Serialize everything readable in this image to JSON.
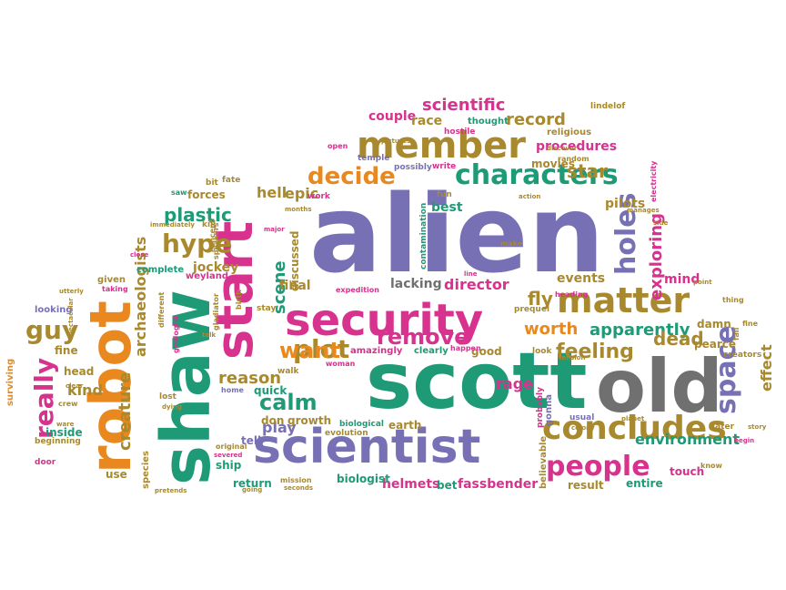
{
  "palette": {
    "purple": "#7770b5",
    "magenta": "#d6328e",
    "green": "#1f9a76",
    "orange": "#e9881e",
    "gold": "#a8892e",
    "gray": "#707070"
  },
  "words": [
    {
      "text": "alien",
      "color": "purple"
    },
    {
      "text": "scott",
      "color": "green"
    },
    {
      "text": "old",
      "color": "gray"
    },
    {
      "text": "shaw",
      "color": "green"
    },
    {
      "text": "scientist",
      "color": "purple"
    },
    {
      "text": "robot",
      "color": "orange"
    },
    {
      "text": "start",
      "color": "magenta"
    },
    {
      "text": "security",
      "color": "magenta"
    },
    {
      "text": "member",
      "color": "gold"
    },
    {
      "text": "matter",
      "color": "gold"
    },
    {
      "text": "characters",
      "color": "green"
    },
    {
      "text": "concludes",
      "color": "gold"
    },
    {
      "text": "people",
      "color": "magenta"
    },
    {
      "text": "holes",
      "color": "purple"
    },
    {
      "text": "space",
      "color": "purple"
    },
    {
      "text": "decide",
      "color": "orange"
    },
    {
      "text": "hype",
      "color": "gold"
    },
    {
      "text": "plot",
      "color": "gold"
    },
    {
      "text": "want",
      "color": "orange"
    },
    {
      "text": "really",
      "color": "magenta"
    },
    {
      "text": "guy",
      "color": "gold"
    },
    {
      "text": "remove",
      "color": "magenta"
    },
    {
      "text": "calm",
      "color": "green"
    },
    {
      "text": "plastic",
      "color": "green"
    },
    {
      "text": "feeling",
      "color": "gold"
    },
    {
      "text": "apparently",
      "color": "green"
    },
    {
      "text": "exploring",
      "color": "magenta"
    },
    {
      "text": "scientific",
      "color": "magenta"
    },
    {
      "text": "record",
      "color": "gold"
    },
    {
      "text": "procedures",
      "color": "magenta"
    },
    {
      "text": "scene",
      "color": "green"
    },
    {
      "text": "reason",
      "color": "gold"
    },
    {
      "text": "play",
      "color": "purple"
    },
    {
      "text": "creature",
      "color": "gold"
    },
    {
      "text": "archaeologists",
      "color": "gold"
    },
    {
      "text": "effect",
      "color": "gold"
    },
    {
      "text": "star",
      "color": "gold"
    },
    {
      "text": "fly",
      "color": "gold"
    },
    {
      "text": "dead",
      "color": "gold"
    },
    {
      "text": "director",
      "color": "magenta"
    },
    {
      "text": "worth",
      "color": "orange"
    },
    {
      "text": "environment",
      "color": "green"
    },
    {
      "text": "epic",
      "color": "gold"
    },
    {
      "text": "hell",
      "color": "gold"
    },
    {
      "text": "forces",
      "color": "gold"
    },
    {
      "text": "jockey",
      "color": "gold"
    },
    {
      "text": "kind",
      "color": "gold"
    },
    {
      "text": "final",
      "color": "gold"
    },
    {
      "text": "rage",
      "color": "magenta"
    },
    {
      "text": "pilots",
      "color": "gold"
    },
    {
      "text": "events",
      "color": "gold"
    },
    {
      "text": "mind",
      "color": "magenta"
    },
    {
      "text": "couple",
      "color": "magenta"
    },
    {
      "text": "race",
      "color": "gold"
    },
    {
      "text": "movies",
      "color": "gold"
    },
    {
      "text": "discussed",
      "color": "gold"
    },
    {
      "text": "quick",
      "color": "green"
    },
    {
      "text": "helmets",
      "color": "magenta"
    },
    {
      "text": "fassbender",
      "color": "magenta"
    },
    {
      "text": "biologist",
      "color": "green"
    },
    {
      "text": "return",
      "color": "green"
    },
    {
      "text": "earth",
      "color": "gold"
    },
    {
      "text": "touch",
      "color": "magenta"
    },
    {
      "text": "entire",
      "color": "green"
    },
    {
      "text": "result",
      "color": "gold"
    },
    {
      "text": "bet",
      "color": "green"
    },
    {
      "text": "good",
      "color": "gold"
    },
    {
      "text": "pearce",
      "color": "gold"
    },
    {
      "text": "damn",
      "color": "gold"
    },
    {
      "text": "lacking",
      "color": "gray"
    },
    {
      "text": "best",
      "color": "green"
    },
    {
      "text": "inside",
      "color": "green"
    },
    {
      "text": "head",
      "color": "gold"
    },
    {
      "text": "fine",
      "color": "gold"
    },
    {
      "text": "tell",
      "color": "purple"
    },
    {
      "text": "ship",
      "color": "green"
    },
    {
      "text": "use",
      "color": "gold"
    },
    {
      "text": "growth",
      "color": "gold"
    },
    {
      "text": "don",
      "color": "gold"
    },
    {
      "text": "thought",
      "color": "green"
    },
    {
      "text": "religious",
      "color": "gold"
    },
    {
      "text": "lindelof",
      "color": "gold"
    },
    {
      "text": "hostile",
      "color": "magenta"
    },
    {
      "text": "random",
      "color": "gold"
    },
    {
      "text": "temple",
      "color": "purple"
    },
    {
      "text": "open",
      "color": "magenta"
    },
    {
      "text": "possibly",
      "color": "purple"
    },
    {
      "text": "write",
      "color": "magenta"
    },
    {
      "text": "fun",
      "color": "gold"
    },
    {
      "text": "action",
      "color": "gold"
    },
    {
      "text": "work",
      "color": "magenta"
    },
    {
      "text": "months",
      "color": "gold"
    },
    {
      "text": "contamination",
      "color": "green"
    },
    {
      "text": "fate",
      "color": "gold"
    },
    {
      "text": "bit",
      "color": "gold"
    },
    {
      "text": "saw",
      "color": "green"
    },
    {
      "text": "kill",
      "color": "gold"
    },
    {
      "text": "concept",
      "color": "gold"
    },
    {
      "text": "major",
      "color": "magenta"
    },
    {
      "text": "weyland",
      "color": "magenta"
    },
    {
      "text": "complete",
      "color": "green"
    },
    {
      "text": "given",
      "color": "gold"
    },
    {
      "text": "taking",
      "color": "magenta"
    },
    {
      "text": "utterly",
      "color": "gold"
    },
    {
      "text": "looking",
      "color": "purple"
    },
    {
      "text": "expedition",
      "color": "magenta"
    },
    {
      "text": "birth",
      "color": "gold"
    },
    {
      "text": "stay",
      "color": "gold"
    },
    {
      "text": "walk",
      "color": "gold"
    },
    {
      "text": "woman",
      "color": "magenta"
    },
    {
      "text": "amazingly",
      "color": "magenta"
    },
    {
      "text": "clearly",
      "color": "green"
    },
    {
      "text": "happen",
      "color": "magenta"
    },
    {
      "text": "evolution",
      "color": "gold"
    },
    {
      "text": "biological",
      "color": "green"
    },
    {
      "text": "prequel",
      "color": "gold"
    },
    {
      "text": "heading",
      "color": "magenta"
    },
    {
      "text": "look",
      "color": "gold"
    },
    {
      "text": "tension",
      "color": "gold"
    },
    {
      "text": "gonna",
      "color": "purple"
    },
    {
      "text": "probably",
      "color": "magenta"
    },
    {
      "text": "usual",
      "color": "purple"
    },
    {
      "text": "colony",
      "color": "gold"
    },
    {
      "text": "planet",
      "color": "gold"
    },
    {
      "text": "creators",
      "color": "gold"
    },
    {
      "text": "later",
      "color": "gold"
    },
    {
      "text": "know",
      "color": "gold"
    },
    {
      "text": "begin",
      "color": "magenta"
    },
    {
      "text": "story",
      "color": "gold"
    },
    {
      "text": "fail",
      "color": "gold"
    },
    {
      "text": "fine",
      "color": "gold"
    },
    {
      "text": "thing",
      "color": "gold"
    },
    {
      "text": "point",
      "color": "gold"
    },
    {
      "text": "electricity",
      "color": "magenta"
    },
    {
      "text": "side",
      "color": "gold"
    },
    {
      "text": "manages",
      "color": "gold"
    },
    {
      "text": "discover",
      "color": "gold"
    },
    {
      "text": "pictures",
      "color": "gold"
    },
    {
      "text": "make",
      "color": "gold"
    },
    {
      "text": "line",
      "color": "magenta"
    },
    {
      "text": "believable",
      "color": "gold"
    },
    {
      "text": "mission",
      "color": "gold"
    },
    {
      "text": "seconds",
      "color": "gold"
    },
    {
      "text": "going",
      "color": "gold"
    },
    {
      "text": "pretends",
      "color": "gold"
    },
    {
      "text": "species",
      "color": "gold"
    },
    {
      "text": "severed",
      "color": "magenta"
    },
    {
      "text": "original",
      "color": "gold"
    },
    {
      "text": "home",
      "color": "purple"
    },
    {
      "text": "lost",
      "color": "gold"
    },
    {
      "text": "crew",
      "color": "gold"
    },
    {
      "text": "ware",
      "color": "gold"
    },
    {
      "text": "dying",
      "color": "gold"
    },
    {
      "text": "different",
      "color": "gold"
    },
    {
      "text": "geologist",
      "color": "magenta"
    },
    {
      "text": "talk",
      "color": "gold"
    },
    {
      "text": "gladiator",
      "color": "gold"
    },
    {
      "text": "speakers",
      "color": "gold"
    },
    {
      "text": "immediately",
      "color": "gold"
    },
    {
      "text": "close",
      "color": "magenta"
    },
    {
      "text": "spectacular",
      "color": "gold"
    },
    {
      "text": "clear",
      "color": "gold"
    },
    {
      "text": "surviving",
      "color": "orange"
    },
    {
      "text": "beginning",
      "color": "gold"
    },
    {
      "text": "door",
      "color": "magenta"
    }
  ]
}
